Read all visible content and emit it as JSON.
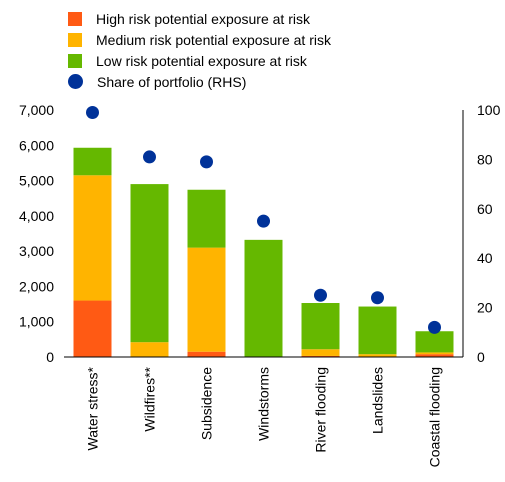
{
  "chart_data": {
    "type": "bar",
    "stacked": true,
    "categories": [
      "Water stress*",
      "Wildfires**",
      "Subsidence",
      "Windstorms",
      "River flooding",
      "Landslides",
      "Coastal flooding"
    ],
    "series": [
      {
        "name": "High risk potential exposure at risk",
        "color": "#ff5a14",
        "values": [
          1600,
          0,
          150,
          0,
          30,
          0,
          80
        ]
      },
      {
        "name": "Medium risk potential exposure at risk",
        "color": "#ffb400",
        "values": [
          3550,
          420,
          2950,
          0,
          190,
          80,
          50
        ]
      },
      {
        "name": "Low risk potential exposure at risk",
        "color": "#65b800",
        "values": [
          780,
          4480,
          1640,
          3320,
          1310,
          1350,
          600
        ]
      }
    ],
    "share_series": {
      "name": "Share of portfolio (RHS)",
      "color": "#003299",
      "values": [
        99,
        81,
        79,
        55,
        25,
        24,
        12
      ]
    },
    "ylim": [
      0,
      7000
    ],
    "yticks": [
      "0",
      "1,000",
      "2,000",
      "3,000",
      "4,000",
      "5,000",
      "6,000",
      "7,000"
    ],
    "y2lim": [
      0,
      100
    ],
    "y2ticks": [
      "0",
      "20",
      "40",
      "60",
      "80",
      "100"
    ],
    "legend_position": "top-left",
    "grid": false
  }
}
